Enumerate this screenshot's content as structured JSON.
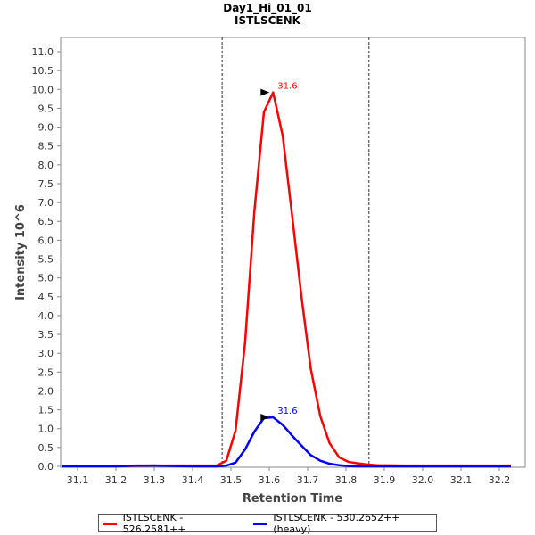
{
  "chart_data": {
    "type": "line",
    "title": "Day1_Hi_01_01",
    "subtitle": "ISTLSCENK",
    "xlabel": "Retention Time",
    "ylabel": "Intensity 10^6",
    "xlim": [
      31.05,
      32.26
    ],
    "ylim": [
      0,
      11.5
    ],
    "xticks": [
      "31.1",
      "31.2",
      "31.3",
      "31.4",
      "31.5",
      "31.6",
      "31.7",
      "31.8",
      "31.9",
      "32.0",
      "32.1",
      "32.2"
    ],
    "yticks": [
      "0.0",
      "0.5",
      "1.0",
      "1.5",
      "2.0",
      "2.5",
      "3.0",
      "3.5",
      "4.0",
      "4.5",
      "5.0",
      "5.5",
      "6.0",
      "6.5",
      "7.0",
      "7.5",
      "8.0",
      "8.5",
      "9.0",
      "9.5",
      "10.0",
      "10.5",
      "11.0"
    ],
    "boundaries": [
      31.477,
      31.86
    ],
    "grid": false,
    "legend_position": "bottom",
    "series": [
      {
        "name": "ISTLSCENK - 526.2581++",
        "color": "#ff0000",
        "peak_label": "31.6",
        "peak_x": 31.61,
        "peak_y": 9.92,
        "x": [
          31.06,
          31.2,
          31.3,
          31.4,
          31.463,
          31.488,
          31.512,
          31.537,
          31.561,
          31.586,
          31.61,
          31.635,
          31.659,
          31.684,
          31.708,
          31.733,
          31.757,
          31.782,
          31.806,
          31.831,
          31.855,
          31.88,
          31.95,
          32.05,
          32.15,
          32.23
        ],
        "y": [
          0.01,
          0.01,
          0.02,
          0.02,
          0.02,
          0.15,
          0.95,
          3.3,
          6.75,
          9.4,
          9.92,
          8.77,
          6.7,
          4.5,
          2.6,
          1.33,
          0.62,
          0.24,
          0.12,
          0.08,
          0.05,
          0.03,
          0.02,
          0.02,
          0.02,
          0.02
        ]
      },
      {
        "name": "ISTLSCENK - 530.2652++ (heavy)",
        "color": "#0000ff",
        "peak_label": "31.6",
        "peak_x": 31.61,
        "peak_y": 1.3,
        "x": [
          31.06,
          31.2,
          31.25,
          31.3,
          31.4,
          31.463,
          31.488,
          31.512,
          31.537,
          31.561,
          31.586,
          31.61,
          31.635,
          31.659,
          31.684,
          31.708,
          31.733,
          31.757,
          31.782,
          31.806,
          31.831,
          31.855,
          31.95,
          32.23
        ],
        "y": [
          0,
          0,
          0.02,
          0.02,
          0,
          0,
          0.02,
          0.1,
          0.45,
          0.92,
          1.28,
          1.3,
          1.1,
          0.82,
          0.55,
          0.3,
          0.15,
          0.07,
          0.03,
          0.01,
          0,
          0,
          0,
          0
        ]
      }
    ]
  }
}
